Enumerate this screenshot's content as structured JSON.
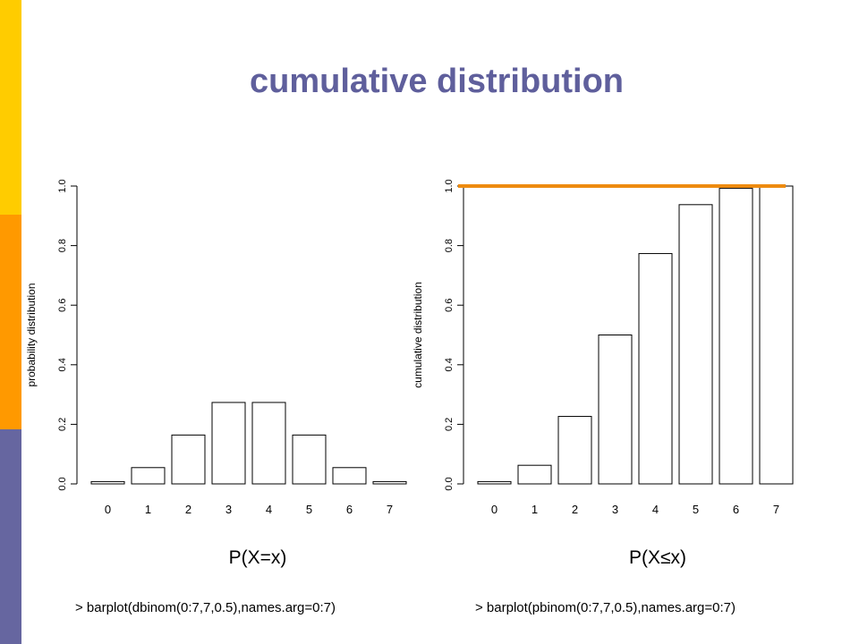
{
  "title": "cumulative distribution",
  "colors": {
    "title": "#5f5f9c",
    "accent_top": "#ffcc00",
    "accent_mid": "#ff9900",
    "accent_bot": "#6666a0",
    "highlight_line": "#ee8b10",
    "bar_fill": "#ffffff",
    "bar_stroke": "#000000"
  },
  "panels": [
    {
      "caption": "P(X=x)",
      "code": "> barplot(dbinom(0:7,7,0.5),names.arg=0:7)"
    },
    {
      "caption": "P(X≤x)",
      "code": "> barplot(pbinom(0:7,7,0.5),names.arg=0:7)"
    }
  ],
  "chart_data": [
    {
      "type": "bar",
      "categories": [
        "0",
        "1",
        "2",
        "3",
        "4",
        "5",
        "6",
        "7"
      ],
      "values": [
        0.0078125,
        0.0546875,
        0.1640625,
        0.2734375,
        0.2734375,
        0.1640625,
        0.0546875,
        0.0078125
      ],
      "ylabel": "probability distribution",
      "ylim": [
        0,
        1
      ],
      "yticks": [
        "0.0",
        "0.2",
        "0.4",
        "0.6",
        "0.8",
        "1.0"
      ],
      "grid": false
    },
    {
      "type": "bar",
      "categories": [
        "0",
        "1",
        "2",
        "3",
        "4",
        "5",
        "6",
        "7"
      ],
      "values": [
        0.0078125,
        0.0625,
        0.2265625,
        0.5,
        0.7734375,
        0.9375,
        0.9921875,
        1.0
      ],
      "ylabel": "cumulative distribution",
      "ylim": [
        0,
        1
      ],
      "yticks": [
        "0.0",
        "0.2",
        "0.4",
        "0.6",
        "0.8",
        "1.0"
      ],
      "grid": false,
      "reference_line": {
        "y": 1.0
      }
    }
  ]
}
